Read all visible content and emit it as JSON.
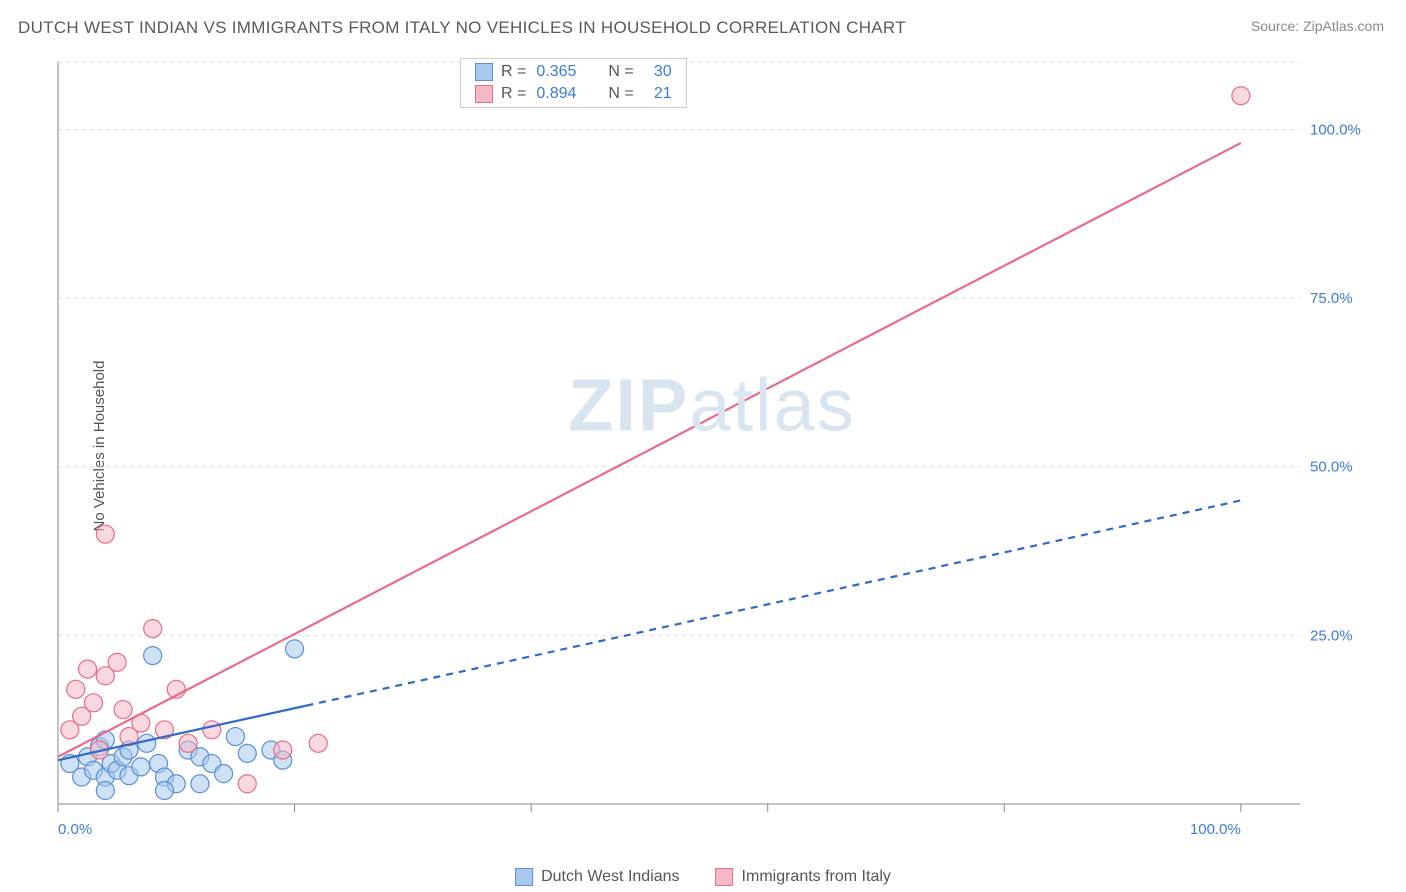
{
  "title": "DUTCH WEST INDIAN VS IMMIGRANTS FROM ITALY NO VEHICLES IN HOUSEHOLD CORRELATION CHART",
  "source": "Source: ZipAtlas.com",
  "ylabel": "No Vehicles in Household",
  "watermark": "ZIPatlas",
  "chart": {
    "type": "scatter",
    "xlim": [
      0,
      105
    ],
    "ylim": [
      0,
      110
    ],
    "xtick_labels": [
      "0.0%",
      "100.0%"
    ],
    "xtick_pos": [
      0,
      100
    ],
    "ytick_labels": [
      "25.0%",
      "50.0%",
      "75.0%",
      "100.0%"
    ],
    "ytick_pos": [
      25,
      50,
      75,
      100
    ],
    "grid_color": "#dddddd",
    "axis_color": "#888888",
    "background_color": "#ffffff",
    "marker_radius": 9,
    "marker_stroke_width": 1.2,
    "series": [
      {
        "name": "Dutch West Indians",
        "color_fill": "#a8c8ec",
        "color_stroke": "#5b8fd6",
        "fill_opacity": 0.55,
        "r": "0.365",
        "n": "30",
        "points": [
          [
            1,
            6
          ],
          [
            2,
            4
          ],
          [
            2.5,
            7
          ],
          [
            3,
            5
          ],
          [
            3.5,
            8.5
          ],
          [
            4,
            4
          ],
          [
            4,
            9.5
          ],
          [
            4.5,
            6
          ],
          [
            5,
            5
          ],
          [
            5.5,
            7
          ],
          [
            6,
            4.2
          ],
          [
            6,
            8
          ],
          [
            7,
            5.5
          ],
          [
            7.5,
            9
          ],
          [
            8,
            22
          ],
          [
            8.5,
            6
          ],
          [
            9,
            4
          ],
          [
            10,
            3
          ],
          [
            11,
            8
          ],
          [
            12,
            7
          ],
          [
            13,
            6
          ],
          [
            14,
            4.5
          ],
          [
            15,
            10
          ],
          [
            16,
            7.5
          ],
          [
            18,
            8
          ],
          [
            19,
            6.5
          ],
          [
            20,
            23
          ],
          [
            4,
            2
          ],
          [
            9,
            2
          ],
          [
            12,
            3
          ]
        ],
        "regression": {
          "solid_end_x": 21,
          "y_at_0": 6.5,
          "y_at_100": 45,
          "line_color": "#2f6bc4",
          "line_width": 2.2,
          "dash": "7,6"
        }
      },
      {
        "name": "Immigrants from Italy",
        "color_fill": "#f4b8c6",
        "color_stroke": "#e86b8b",
        "fill_opacity": 0.55,
        "r": "0.894",
        "n": "21",
        "points": [
          [
            1,
            11
          ],
          [
            1.5,
            17
          ],
          [
            2,
            13
          ],
          [
            2.5,
            20
          ],
          [
            3,
            15
          ],
          [
            3.5,
            8
          ],
          [
            4,
            19
          ],
          [
            4,
            40
          ],
          [
            5,
            21
          ],
          [
            5.5,
            14
          ],
          [
            6,
            10
          ],
          [
            7,
            12
          ],
          [
            8,
            26
          ],
          [
            9,
            11
          ],
          [
            10,
            17
          ],
          [
            11,
            9
          ],
          [
            13,
            11
          ],
          [
            16,
            3
          ],
          [
            19,
            8
          ],
          [
            22,
            9
          ],
          [
            100,
            105
          ]
        ],
        "regression": {
          "solid_end_x": 100,
          "y_at_0": 7,
          "y_at_100": 98,
          "line_color": "#e86b8b",
          "line_width": 2.2,
          "dash": "none"
        }
      }
    ]
  },
  "legend_bottom": [
    {
      "label": "Dutch West Indians",
      "fill": "#a8c8ec",
      "stroke": "#5b8fd6"
    },
    {
      "label": "Immigrants from Italy",
      "fill": "#f4b8c6",
      "stroke": "#e86b8b"
    }
  ],
  "legend_top": [
    {
      "fill": "#a8c8ec",
      "stroke": "#5b8fd6",
      "r": "0.365",
      "n": "30"
    },
    {
      "fill": "#f4b8c6",
      "stroke": "#e86b8b",
      "r": "0.894",
      "n": "21"
    }
  ]
}
